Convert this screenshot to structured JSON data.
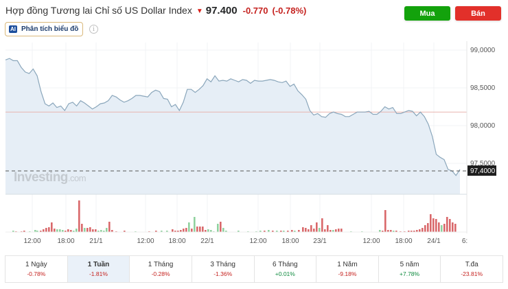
{
  "header": {
    "title": "Hợp đồng Tương lai Chỉ số US Dollar Index",
    "direction_icon": "down-arrow-icon",
    "price": "97.400",
    "change": "-0.770",
    "change_pct": "(-0.78%)"
  },
  "actions": {
    "buy_label": "Mua",
    "sell_label": "Bán",
    "buy_color": "#13a20c",
    "sell_color": "#e2302a"
  },
  "ai_analysis": {
    "badge": "AI",
    "label": "Phân tích biểu đồ",
    "info_icon": "info-icon"
  },
  "watermark": {
    "brand": "Investing",
    "suffix": ".com"
  },
  "chart_data": {
    "type": "line",
    "title": "Hợp đồng Tương lai Chỉ số US Dollar Index",
    "xlabel": "",
    "ylabel": "",
    "ylim": [
      97.2,
      99.15
    ],
    "y_ticks": [
      "99,0000",
      "98,5000",
      "98,0000",
      "97,5000"
    ],
    "x_ticks": [
      "12:00",
      "18:00",
      "21/1",
      "12:00",
      "18:00",
      "22/1",
      "12:00",
      "18:00",
      "23/1",
      "12:00",
      "18:00",
      "24/1",
      "6:"
    ],
    "current_price_label": "97,4000",
    "current_price": 97.4,
    "reference_line": 98.18,
    "grid": true,
    "series": [
      {
        "name": "Price",
        "values": [
          98.87,
          98.89,
          98.86,
          98.86,
          98.77,
          98.71,
          98.69,
          98.75,
          98.66,
          98.45,
          98.29,
          98.26,
          98.3,
          98.24,
          98.26,
          98.2,
          98.29,
          98.31,
          98.26,
          98.33,
          98.3,
          98.26,
          98.22,
          98.25,
          98.29,
          98.3,
          98.33,
          98.4,
          98.38,
          98.34,
          98.31,
          98.33,
          98.36,
          98.4,
          98.4,
          98.39,
          98.38,
          98.44,
          98.47,
          98.45,
          98.36,
          98.35,
          98.25,
          98.28,
          98.2,
          98.31,
          98.48,
          98.48,
          98.44,
          98.48,
          98.53,
          98.62,
          98.58,
          98.66,
          98.59,
          98.6,
          98.59,
          98.62,
          98.6,
          98.58,
          98.61,
          98.6,
          98.56,
          98.6,
          98.59,
          98.59,
          98.6,
          98.61,
          98.6,
          98.58,
          98.57,
          98.59,
          98.52,
          98.55,
          98.46,
          98.41,
          98.35,
          98.2,
          98.14,
          98.16,
          98.12,
          98.11,
          98.16,
          98.18,
          98.16,
          98.15,
          98.12,
          98.12,
          98.15,
          98.18,
          98.18,
          98.18,
          98.19,
          98.15,
          98.15,
          98.19,
          98.25,
          98.22,
          98.24,
          98.16,
          98.16,
          98.18,
          98.2,
          98.19,
          98.13,
          98.18,
          98.12,
          98.02,
          97.86,
          97.62,
          97.58,
          97.55,
          97.42,
          97.4,
          97.34,
          97.42
        ]
      }
    ],
    "volume": {
      "series": [
        {
          "name": "Volume (down)",
          "color": "#d9686a"
        },
        {
          "name": "Volume (up)",
          "color": "#8fd19e"
        }
      ]
    }
  },
  "periods": [
    {
      "label": "1 Ngày",
      "value": "-0.78%",
      "sign": "neg",
      "active": false
    },
    {
      "label": "1 Tuần",
      "value": "-1.81%",
      "sign": "neg",
      "active": true
    },
    {
      "label": "1 Tháng",
      "value": "-0.28%",
      "sign": "neg",
      "active": false
    },
    {
      "label": "3 Tháng",
      "value": "-1.36%",
      "sign": "neg",
      "active": false
    },
    {
      "label": "6 Tháng",
      "value": "+0.01%",
      "sign": "pos",
      "active": false
    },
    {
      "label": "1 Năm",
      "value": "-9.18%",
      "sign": "neg",
      "active": false
    },
    {
      "label": "5 năm",
      "value": "+7.78%",
      "sign": "pos",
      "active": false
    },
    {
      "label": "T.đa",
      "value": "-23.81%",
      "sign": "neg",
      "active": false
    }
  ]
}
